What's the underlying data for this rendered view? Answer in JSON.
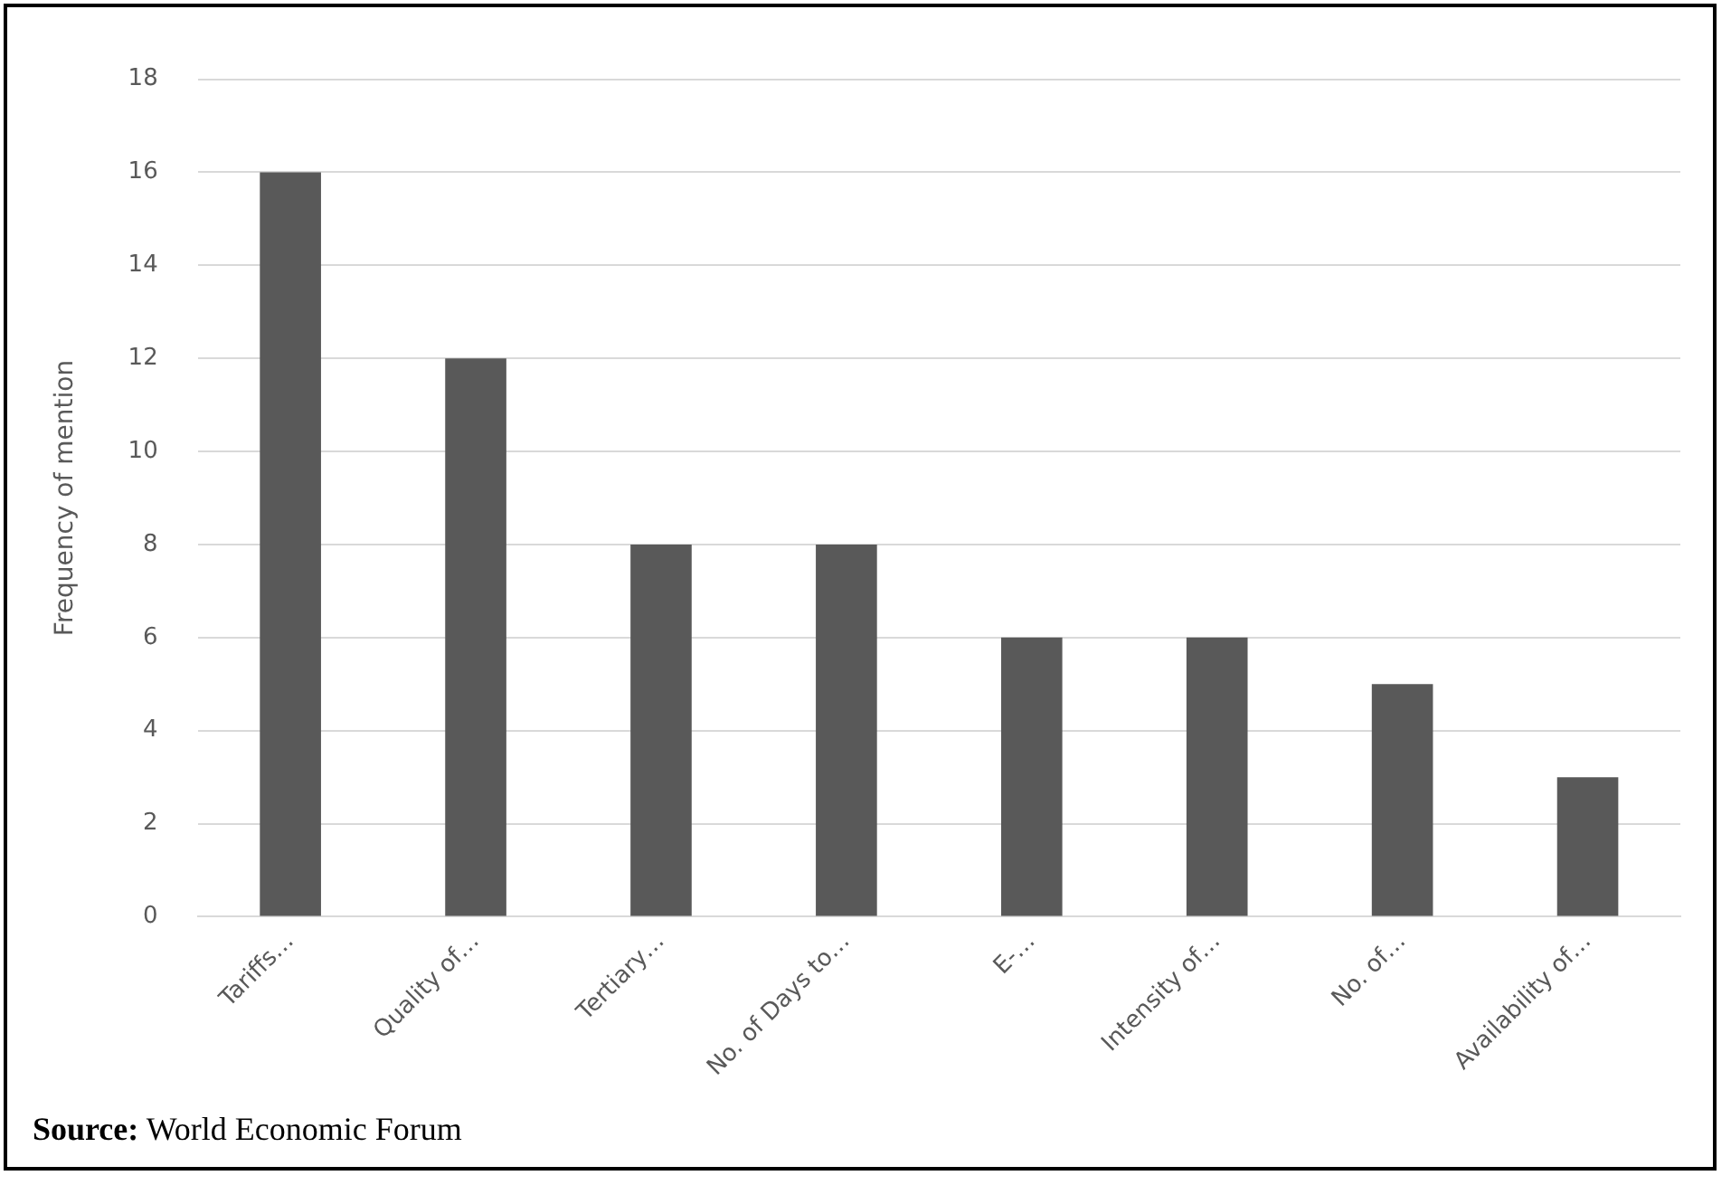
{
  "chart_data": {
    "type": "bar",
    "ylabel": "Frequency of mention",
    "categories": [
      "Tariffs…",
      "Quality of…",
      "Tertiary…",
      "No. of Days to…",
      "E-…",
      "Intensity of…",
      "No. of…",
      "Availability of…"
    ],
    "values": [
      16,
      12,
      8,
      8,
      6,
      6,
      5,
      3
    ],
    "color": "#595959",
    "ylim": [
      0,
      18
    ],
    "yticks": [
      0,
      2,
      4,
      6,
      8,
      10,
      12,
      14,
      16,
      18
    ],
    "grid": "y",
    "annotations": [
      "Source: World Economic Forum"
    ]
  }
}
